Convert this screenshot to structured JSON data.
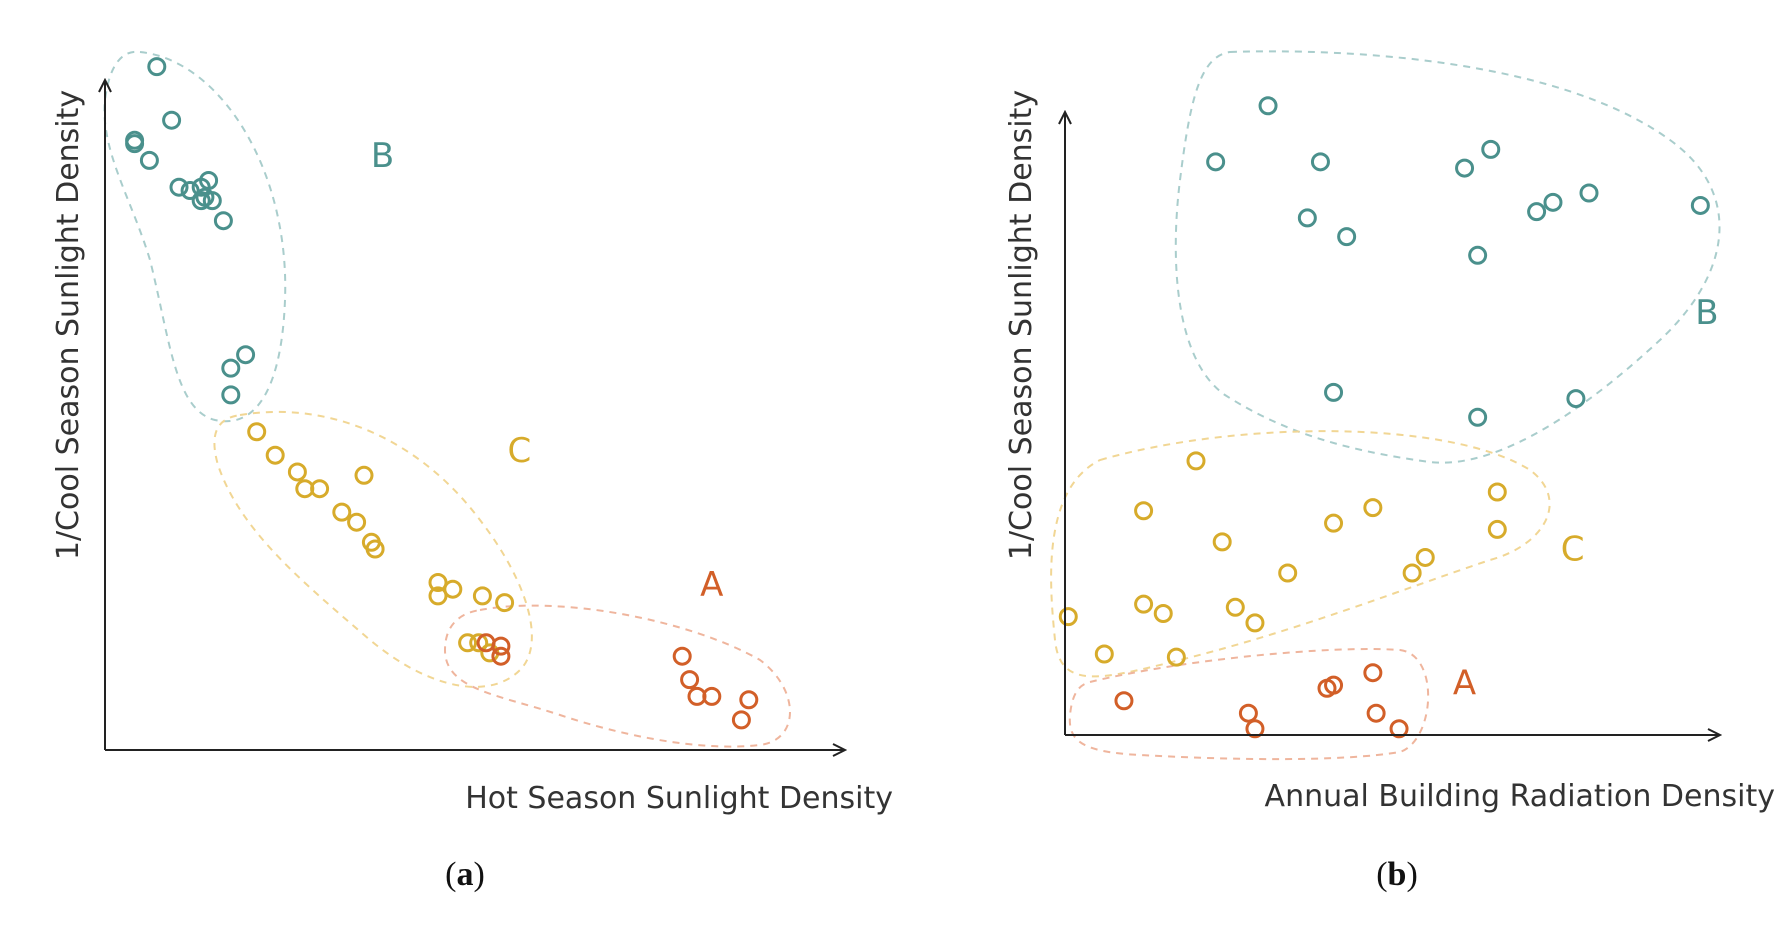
{
  "colors": {
    "A": "#d25f28",
    "B": "#4a908c",
    "C": "#d7ab2b",
    "hullA": "#efb59d",
    "hullB": "#a9cdcc",
    "hullC": "#f1d694"
  },
  "chart_data": [
    {
      "type": "scatter",
      "panel": "a",
      "caption_letter": "a",
      "xlabel": "Hot Season Sunlight Density",
      "ylabel": "1/Cool Season Sunlight Density",
      "xlim": [
        0,
        100
      ],
      "ylim": [
        0,
        100
      ],
      "grid": false,
      "tick_labels": false,
      "clusters": [
        {
          "label": "B",
          "color_key": "B",
          "label_pos": [
            37.5,
            87
          ],
          "points": [
            [
              7,
              102
            ],
            [
              9,
              94
            ],
            [
              4,
              91
            ],
            [
              4,
              90.5
            ],
            [
              6,
              88
            ],
            [
              10,
              84
            ],
            [
              11.5,
              83.5
            ],
            [
              13,
              84
            ],
            [
              13.5,
              82.5
            ],
            [
              14,
              85
            ],
            [
              13,
              82
            ],
            [
              14.5,
              82
            ],
            [
              16,
              79
            ],
            [
              19,
              59
            ],
            [
              17,
              57
            ],
            [
              17,
              53
            ]
          ]
        },
        {
          "label": "C",
          "color_key": "C",
          "label_pos": [
            56,
            43
          ],
          "points": [
            [
              20.5,
              47.5
            ],
            [
              23,
              44
            ],
            [
              26,
              41.5
            ],
            [
              27,
              39
            ],
            [
              29,
              39
            ],
            [
              35,
              41
            ],
            [
              32,
              35.5
            ],
            [
              34,
              34
            ],
            [
              36,
              31
            ],
            [
              36.5,
              30
            ],
            [
              45,
              25
            ],
            [
              45,
              23
            ],
            [
              47,
              24
            ],
            [
              51,
              23
            ],
            [
              54,
              22
            ],
            [
              49,
              16
            ],
            [
              50.5,
              16
            ],
            [
              52,
              14.5
            ]
          ]
        },
        {
          "label": "A",
          "color_key": "A",
          "label_pos": [
            82,
            23
          ],
          "points": [
            [
              51.5,
              16
            ],
            [
              53.5,
              15.5
            ],
            [
              53.5,
              14
            ],
            [
              78,
              14
            ],
            [
              79,
              10.5
            ],
            [
              80,
              8
            ],
            [
              82,
              8
            ],
            [
              87,
              7.5
            ],
            [
              86,
              4.5
            ]
          ]
        }
      ]
    },
    {
      "type": "scatter",
      "panel": "b",
      "caption_letter": "b",
      "xlabel": "Annual Building Radiation Density",
      "ylabel": "1/Cool Season Sunlight Density",
      "xlim": [
        0,
        100
      ],
      "ylim": [
        0,
        100
      ],
      "grid": false,
      "tick_labels": false,
      "clusters": [
        {
          "label": "B",
          "color_key": "B",
          "label_pos": [
            98,
            66
          ],
          "points": [
            [
              31,
              101
            ],
            [
              23,
              92
            ],
            [
              39,
              92
            ],
            [
              61,
              91
            ],
            [
              65,
              94
            ],
            [
              37,
              83
            ],
            [
              43,
              80
            ],
            [
              72,
              84
            ],
            [
              74.5,
              85.5
            ],
            [
              80,
              87
            ],
            [
              97,
              85
            ],
            [
              63,
              77
            ],
            [
              41,
              55
            ],
            [
              63,
              51
            ],
            [
              78,
              54
            ]
          ]
        },
        {
          "label": "C",
          "color_key": "C",
          "label_pos": [
            77.5,
            28
          ],
          "points": [
            [
              20,
              44
            ],
            [
              12,
              36
            ],
            [
              66,
              39
            ],
            [
              47,
              36.5
            ],
            [
              41,
              34
            ],
            [
              24,
              31
            ],
            [
              66,
              33
            ],
            [
              34,
              26
            ],
            [
              53,
              26
            ],
            [
              55,
              28.5
            ],
            [
              0.5,
              19
            ],
            [
              12,
              21
            ],
            [
              15,
              19.5
            ],
            [
              26,
              20.5
            ],
            [
              29,
              18
            ],
            [
              6,
              13
            ],
            [
              17,
              12.5
            ]
          ]
        },
        {
          "label": "A",
          "color_key": "A",
          "label_pos": [
            61,
            6.5
          ],
          "points": [
            [
              9,
              5.5
            ],
            [
              40,
              7.5
            ],
            [
              41,
              8
            ],
            [
              47,
              10
            ],
            [
              28,
              3.5
            ],
            [
              29,
              1
            ],
            [
              47.5,
              3.5
            ],
            [
              51,
              1
            ]
          ]
        }
      ]
    }
  ]
}
